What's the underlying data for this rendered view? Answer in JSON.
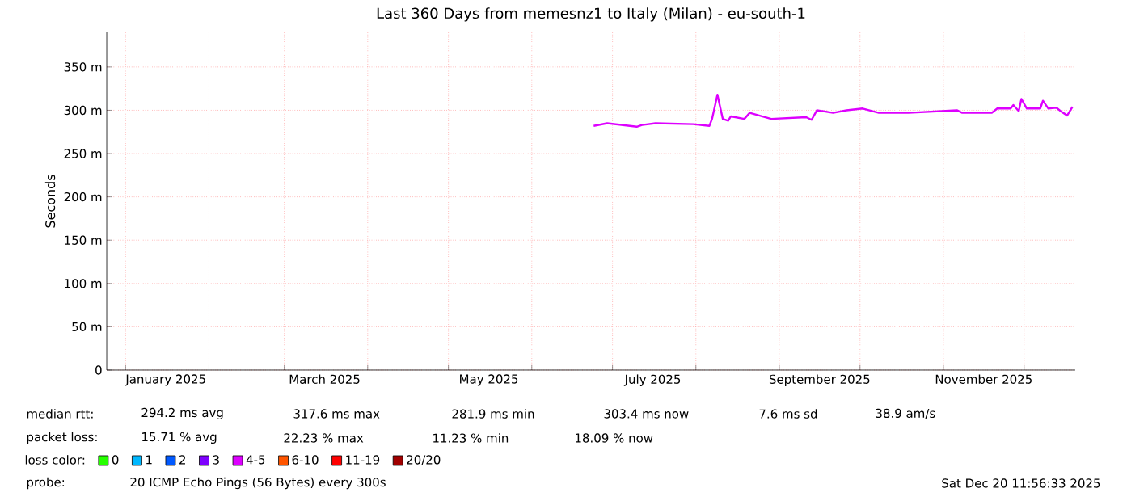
{
  "chart_data": {
    "type": "line",
    "title": "Last 360 Days from memesnz1 to Italy (Milan) - eu-south-1",
    "ylabel": "Seconds",
    "xlim": [
      "2024-12-25",
      "2025-12-20"
    ],
    "xticks": [
      {
        "value": "2025-01-01",
        "label": null
      },
      {
        "value": "2025-01-16",
        "label": "January 2025"
      },
      {
        "value": "2025-02-01",
        "label": null
      },
      {
        "value": "2025-03-01",
        "label": null
      },
      {
        "value": "2025-03-16",
        "label": "March 2025"
      },
      {
        "value": "2025-04-01",
        "label": null
      },
      {
        "value": "2025-05-01",
        "label": null
      },
      {
        "value": "2025-05-16",
        "label": "May 2025"
      },
      {
        "value": "2025-06-01",
        "label": null
      },
      {
        "value": "2025-07-01",
        "label": null
      },
      {
        "value": "2025-07-16",
        "label": "July 2025"
      },
      {
        "value": "2025-08-01",
        "label": null
      },
      {
        "value": "2025-09-01",
        "label": null
      },
      {
        "value": "2025-09-16",
        "label": "September 2025"
      },
      {
        "value": "2025-10-01",
        "label": null
      },
      {
        "value": "2025-11-01",
        "label": null
      },
      {
        "value": "2025-11-16",
        "label": "November 2025"
      },
      {
        "value": "2025-12-01",
        "label": null
      }
    ],
    "ylim": [
      0,
      390
    ],
    "yticks": [
      0,
      {
        "value": 50,
        "label": "50 m"
      },
      {
        "value": 100,
        "label": "100 m"
      },
      {
        "value": 150,
        "label": "150 m"
      },
      {
        "value": 200,
        "label": "200 m"
      },
      {
        "value": 250,
        "label": "250 m"
      },
      {
        "value": 300,
        "label": "300 m"
      },
      {
        "value": 350,
        "label": "350 m"
      }
    ],
    "grid": true,
    "legend": "bottom",
    "legend_title": "loss color:",
    "x": [
      "2025-06-24",
      "2025-06-29",
      "2025-07-10",
      "2025-07-12",
      "2025-07-17",
      "2025-07-31",
      "2025-08-06",
      "2025-08-07",
      "2025-08-09",
      "2025-08-11",
      "2025-08-13",
      "2025-08-14",
      "2025-08-19",
      "2025-08-21",
      "2025-08-29",
      "2025-09-11",
      "2025-09-13",
      "2025-09-15",
      "2025-09-21",
      "2025-09-26",
      "2025-10-02",
      "2025-10-08",
      "2025-10-19",
      "2025-11-06",
      "2025-11-08",
      "2025-11-19",
      "2025-11-21",
      "2025-11-26",
      "2025-11-27",
      "2025-11-29",
      "2025-11-30",
      "2025-12-02",
      "2025-12-07",
      "2025-12-08",
      "2025-12-10",
      "2025-12-13",
      "2025-12-15",
      "2025-12-17",
      "2025-12-19"
    ],
    "series": [
      {
        "name": "0",
        "color": "#26ff00",
        "values": [
          null,
          null,
          null,
          null,
          null,
          null,
          null,
          null,
          null,
          null,
          null,
          null,
          null,
          null,
          null,
          null,
          null,
          null,
          null,
          null,
          null,
          null,
          null,
          null,
          null,
          null,
          null,
          null,
          null,
          null,
          null,
          null,
          null,
          null,
          null,
          null,
          null,
          null,
          null
        ]
      },
      {
        "name": "1",
        "color": "#00b8ff",
        "values": [
          null,
          null,
          null,
          null,
          null,
          null,
          null,
          null,
          null,
          null,
          null,
          null,
          null,
          null,
          null,
          null,
          null,
          null,
          null,
          null,
          null,
          null,
          null,
          null,
          null,
          null,
          null,
          null,
          null,
          null,
          null,
          null,
          null,
          null,
          null,
          null,
          null,
          null,
          null
        ]
      },
      {
        "name": "2",
        "color": "#0059ff",
        "values": [
          null,
          null,
          null,
          null,
          null,
          null,
          null,
          null,
          null,
          null,
          null,
          null,
          null,
          null,
          null,
          null,
          null,
          null,
          null,
          null,
          null,
          null,
          null,
          null,
          null,
          null,
          null,
          null,
          null,
          null,
          null,
          null,
          null,
          null,
          null,
          null,
          null,
          null,
          null
        ]
      },
      {
        "name": "3",
        "color": "#7e00ff",
        "values": [
          null,
          null,
          null,
          null,
          null,
          null,
          null,
          null,
          null,
          null,
          null,
          null,
          null,
          null,
          null,
          null,
          null,
          null,
          null,
          null,
          null,
          null,
          null,
          null,
          null,
          null,
          null,
          null,
          null,
          null,
          null,
          null,
          null,
          null,
          null,
          null,
          null,
          null,
          null
        ]
      },
      {
        "name": "4-5",
        "color": "#dd00ff",
        "values": [
          282,
          285,
          281,
          283,
          285,
          284,
          282,
          290,
          318,
          290,
          288,
          293,
          290,
          297,
          290,
          292,
          289,
          300,
          297,
          300,
          302,
          297,
          297,
          300,
          297,
          297,
          302,
          302,
          306,
          299,
          313,
          302,
          302,
          311,
          302,
          303,
          298,
          294,
          304
        ]
      },
      {
        "name": "6-10",
        "color": "#ff5500",
        "values": [
          null,
          null,
          null,
          null,
          null,
          null,
          null,
          null,
          null,
          null,
          null,
          null,
          null,
          null,
          null,
          null,
          null,
          null,
          null,
          null,
          null,
          null,
          null,
          null,
          null,
          null,
          null,
          null,
          null,
          null,
          null,
          null,
          null,
          null,
          null,
          null,
          null,
          null,
          null
        ]
      },
      {
        "name": "11-19",
        "color": "#ff0000",
        "values": [
          null,
          null,
          null,
          null,
          null,
          null,
          null,
          null,
          null,
          null,
          null,
          null,
          null,
          null,
          null,
          null,
          null,
          null,
          null,
          null,
          null,
          null,
          null,
          null,
          null,
          null,
          null,
          null,
          null,
          null,
          null,
          null,
          null,
          null,
          null,
          null,
          null,
          null,
          null
        ]
      },
      {
        "name": "20/20",
        "color": "#a10000",
        "values": [
          null,
          null,
          null,
          null,
          null,
          null,
          null,
          null,
          null,
          null,
          null,
          null,
          null,
          null,
          null,
          null,
          null,
          null,
          null,
          null,
          null,
          null,
          null,
          null,
          null,
          null,
          null,
          null,
          null,
          null,
          null,
          null,
          null,
          null,
          null,
          null,
          null,
          null,
          null
        ]
      }
    ],
    "annotations": [
      "median rtt:",
      "294.2 ms avg",
      "317.6 ms max",
      "281.9 ms min",
      "303.4 ms now",
      "7.6 ms sd",
      "38.9 am/s",
      "packet loss:",
      "15.71 % avg",
      "22.23 % max",
      "11.23 % min",
      "18.09 % now",
      "probe:",
      "20 ICMP Echo Pings (56 Bytes) every 300s",
      "Sat Dec 20 11:56:33 2025"
    ]
  }
}
